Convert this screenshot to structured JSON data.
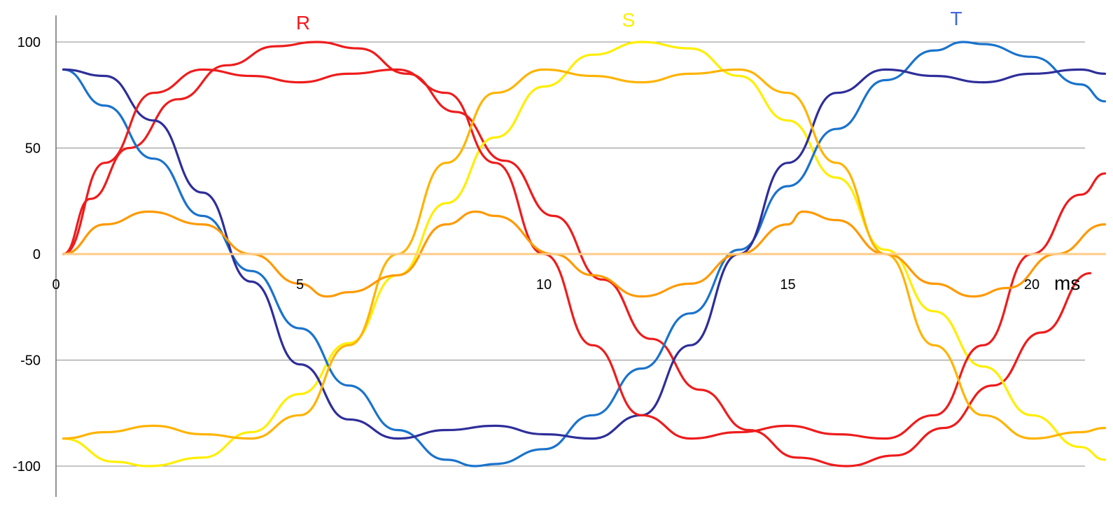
{
  "chart_data": {
    "type": "line",
    "title": "",
    "xlabel": "ms",
    "ylabel": "",
    "xlim": [
      0,
      21.5
    ],
    "ylim": [
      -100,
      100
    ],
    "grid": true,
    "x_ticks": [
      "0",
      "5",
      "10",
      "15",
      "20"
    ],
    "y_ticks": [
      "100",
      "50",
      "0",
      "-50",
      "-100"
    ],
    "phase_labels": {
      "r": {
        "text": "R",
        "color": "#ee1c1c"
      },
      "s": {
        "text": "S",
        "color": "#ffee00"
      },
      "t": {
        "text": "T",
        "color": "#4466dd"
      }
    },
    "series": [
      {
        "color": "#ee1c1c",
        "x": [
          0.15,
          0.7,
          1.5,
          2.5,
          3.5,
          4.5,
          5.35,
          6.2,
          7.2,
          8.2,
          9.2,
          10.2,
          11.2,
          12.2,
          13.2,
          14.2,
          15.2,
          16.2,
          17.2,
          18.2,
          19.2,
          20.2,
          21.2
        ],
        "y": [
          0,
          26,
          50,
          73,
          89,
          98,
          100,
          97,
          85,
          67,
          44,
          18,
          -12,
          -40,
          -64,
          -83,
          -96,
          -100,
          -95,
          -82,
          -62,
          -37,
          -9
        ]
      },
      {
        "color": "#ffee00",
        "x": [
          0.15,
          1.2,
          1.9,
          3.0,
          4.0,
          5.0,
          6.0,
          7.0,
          8.0,
          9.0,
          10.0,
          11.0,
          12.0,
          13.0,
          14.0,
          15.0,
          16.0,
          17.0,
          18.0,
          19.0,
          20.0,
          21.0,
          21.5
        ],
        "y": [
          -87,
          -98,
          -100,
          -96,
          -84,
          -66,
          -42,
          -10,
          24,
          55,
          79,
          94,
          100,
          97,
          84,
          63,
          36,
          2,
          -27,
          -53,
          -76,
          -91,
          -97
        ]
      },
      {
        "color": "#1a73cc",
        "x": [
          0.15,
          1.0,
          2.0,
          3.0,
          4.0,
          5.0,
          6.0,
          7.0,
          8.0,
          8.6,
          9.0,
          10.0,
          11.0,
          12.0,
          13.0,
          14.0,
          15.0,
          16.0,
          17.0,
          18.0,
          18.6,
          19.0,
          20.0,
          21.0,
          21.5
        ],
        "y": [
          87,
          70,
          45,
          18,
          -8,
          -35,
          -62,
          -83,
          -97,
          -100,
          -99,
          -92,
          -76,
          -54,
          -28,
          2,
          32,
          59,
          82,
          96,
          100,
          99,
          93,
          80,
          72
        ]
      },
      {
        "color": "#2e2e9a",
        "x": [
          0.15,
          1.0,
          2.0,
          3.0,
          4.0,
          5.0,
          6.0,
          7.0,
          8.0,
          9.0,
          10.0,
          11.0,
          12.0,
          13.0,
          14.0,
          15.0,
          16.0,
          17.0,
          18.0,
          19.0,
          20.0,
          21.0,
          21.5
        ],
        "y": [
          87,
          84,
          63,
          29,
          -13,
          -52,
          -78,
          -87,
          -83,
          -81,
          -85,
          -87,
          -76,
          -43,
          0,
          43,
          76,
          87,
          84,
          81,
          85,
          87,
          85
        ]
      },
      {
        "color": "#ee1c1c",
        "x": [
          0.15,
          1.0,
          2.0,
          3.0,
          4.0,
          5.0,
          6.0,
          7.0,
          8.0,
          9.0,
          10.0,
          11.0,
          12.0,
          13.0,
          14.0,
          15.0,
          16.0,
          17.0,
          18.0,
          19.0,
          20.0,
          21.0,
          21.5
        ],
        "y": [
          0,
          43,
          76,
          87,
          84,
          81,
          85,
          87,
          76,
          43,
          0,
          -43,
          -76,
          -87,
          -84,
          -81,
          -85,
          -87,
          -76,
          -43,
          0,
          28,
          38
        ]
      },
      {
        "color": "#ffb300",
        "x": [
          0.15,
          1.0,
          2.0,
          3.0,
          4.0,
          5.0,
          6.0,
          7.0,
          8.0,
          9.0,
          10.0,
          11.0,
          12.0,
          13.0,
          14.0,
          15.0,
          16.0,
          17.0,
          18.0,
          19.0,
          20.0,
          21.0,
          21.5
        ],
        "y": [
          -87,
          -84,
          -81,
          -85,
          -87,
          -76,
          -43,
          0,
          43,
          76,
          87,
          84,
          81,
          85,
          87,
          76,
          43,
          0,
          -43,
          -76,
          -87,
          -84,
          -82
        ]
      },
      {
        "color": "#ff9900",
        "x": [
          0.15,
          1.0,
          1.9,
          3.0,
          4.0,
          5.0,
          5.55,
          6.0,
          7.0,
          8.0,
          8.6,
          9.0,
          10.2,
          11.0,
          12.0,
          13.0,
          14.0,
          15.0,
          15.3,
          16.0,
          17.0,
          18.0,
          18.8,
          19.5,
          20.5,
          21.5
        ],
        "y": [
          0,
          14,
          20,
          14,
          0,
          -14,
          -20,
          -18,
          -10,
          14,
          20,
          18,
          0,
          -10,
          -20,
          -14,
          0,
          14,
          20,
          16,
          0,
          -14,
          -20,
          -16,
          0,
          14
        ]
      },
      {
        "color": "#ffcc88",
        "x": [
          0.15,
          21.5
        ],
        "y": [
          0,
          0
        ]
      }
    ]
  }
}
